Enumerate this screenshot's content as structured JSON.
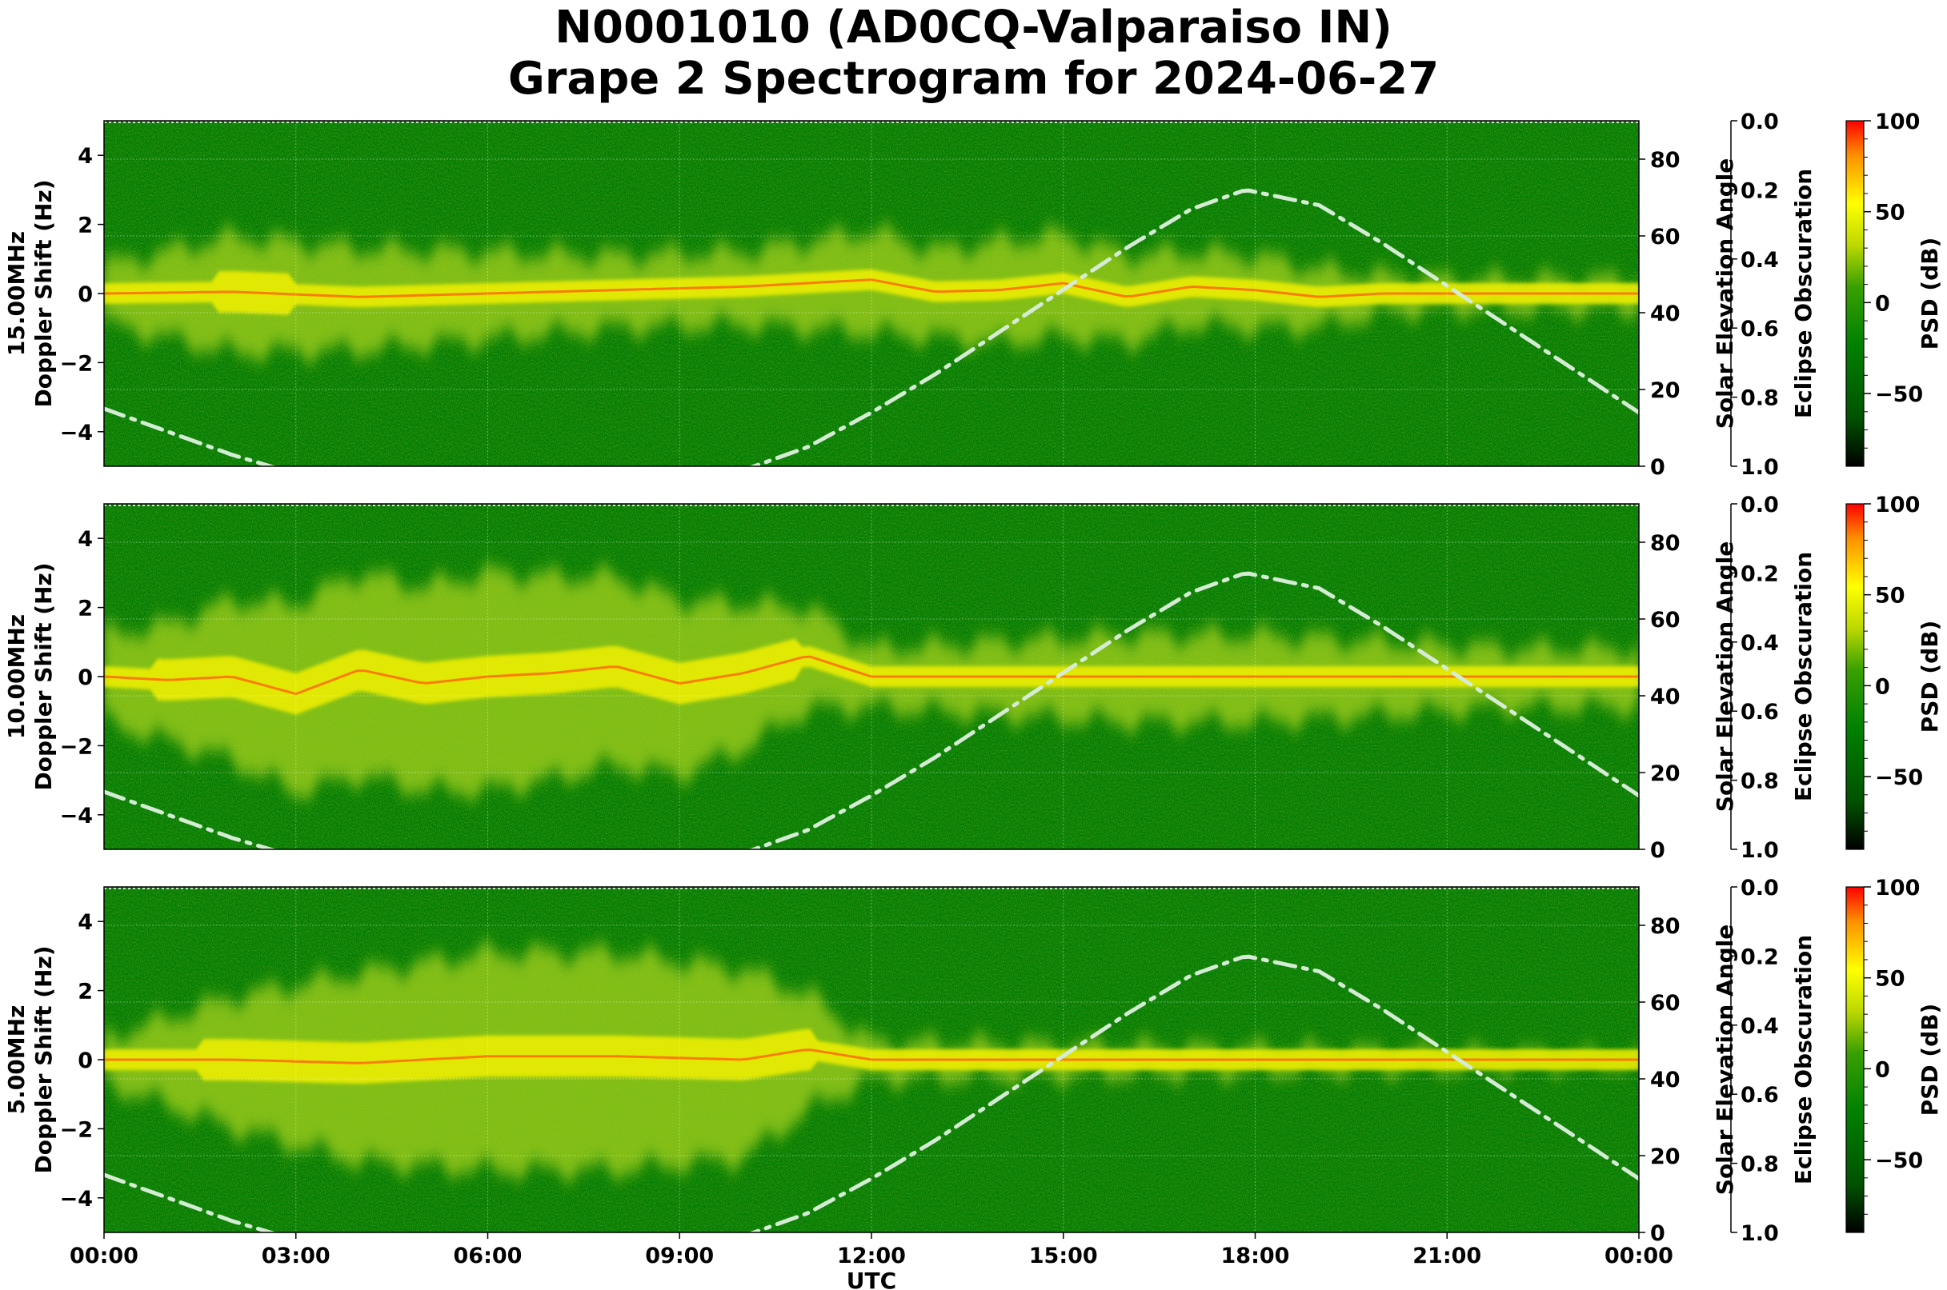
{
  "title": "N0001010 (AD0CQ-Valparaiso IN)",
  "subtitle": "Grape 2 Spectrogram for 2024-06-27",
  "chart_data": {
    "type": "heatmap",
    "xlabel": "UTC",
    "x_ticks": [
      "00:00",
      "03:00",
      "06:00",
      "09:00",
      "12:00",
      "15:00",
      "18:00",
      "21:00",
      "00:00"
    ],
    "x_range_hours": [
      0,
      24
    ],
    "y_ticks": [
      "4",
      "2",
      "0",
      "−2",
      "−4"
    ],
    "y_range": [
      -5,
      5
    ],
    "right_axis_label": "Solar Elevation Angle",
    "right_axis_ticks": [
      "80",
      "60",
      "40",
      "20",
      "0"
    ],
    "right_axis_range": [
      0,
      90
    ],
    "eclipse_axis_label": "Eclipse Obscuration",
    "eclipse_ticks": [
      "0.0",
      "0.2",
      "0.4",
      "0.6",
      "0.8",
      "1.0"
    ],
    "colorbar_label": "PSD (dB)",
    "colorbar_ticks": [
      "100",
      "50",
      "0",
      "−50"
    ],
    "colorbar_range": [
      -90,
      100
    ],
    "colormap": [
      "#000000",
      "#006e00",
      "#008000",
      "#7ec81e",
      "#ffff00",
      "#ff8000",
      "#ff0000"
    ],
    "solar_elevation_curve": {
      "color": "#d4ecd4",
      "style": "dash-dot",
      "hours": [
        0,
        1,
        2,
        3,
        4,
        5,
        6,
        7,
        8,
        9,
        10,
        11,
        12,
        13,
        14,
        15,
        16,
        17,
        17.85,
        19,
        20,
        21,
        22,
        23,
        24
      ],
      "degrees": [
        15,
        9,
        3,
        -2,
        -6,
        -9,
        -11,
        -11,
        -9,
        -6,
        -1,
        5,
        14,
        24,
        35,
        46,
        57,
        67,
        72,
        68,
        58,
        47,
        36,
        25,
        14
      ]
    },
    "panels": [
      {
        "name": "15MHz",
        "ylabel_line1": "15.00MHz",
        "ylabel_line2": "Doppler Shift (Hz)",
        "carrier_hours": [
          0,
          2,
          4,
          6,
          8,
          10,
          12,
          13,
          14,
          15,
          16,
          17,
          18,
          19,
          20,
          21,
          22,
          24
        ],
        "carrier_hz": [
          0,
          0.05,
          -0.1,
          0,
          0.1,
          0.2,
          0.4,
          0.05,
          0.1,
          0.3,
          -0.1,
          0.2,
          0.1,
          -0.1,
          0,
          0,
          0,
          0
        ],
        "spread_hz": [
          0.8,
          1.6,
          1.4,
          1.2,
          1.0,
          1.0,
          1.4,
          1.2,
          1.4,
          1.4,
          1.2,
          1.0,
          1.0,
          0.8,
          0.5,
          0.4,
          0.4,
          0.4
        ]
      },
      {
        "name": "10MHz",
        "ylabel_line1": "10.00MHz",
        "ylabel_line2": "Doppler Shift (Hz)",
        "carrier_hours": [
          0,
          1,
          2,
          3,
          4,
          5,
          6,
          7,
          8,
          9,
          10,
          11,
          12,
          14,
          16,
          18,
          20,
          22,
          24
        ],
        "carrier_hz": [
          0,
          -0.1,
          0,
          -0.5,
          0.2,
          -0.2,
          0,
          0.1,
          0.3,
          -0.2,
          0.1,
          0.6,
          0,
          0,
          0,
          0,
          0,
          0,
          0
        ],
        "spread_hz": [
          1.2,
          1.6,
          2.2,
          2.6,
          2.8,
          2.8,
          3.0,
          2.8,
          2.6,
          2.4,
          2.0,
          1.4,
          0.8,
          1.0,
          1.2,
          1.2,
          1.0,
          0.8,
          0.8
        ]
      },
      {
        "name": "5MHz",
        "ylabel_line1": "5.00MHz",
        "ylabel_line2": "Doppler Shift (Hz)",
        "carrier_hours": [
          0,
          2,
          4,
          6,
          8,
          10,
          11,
          12,
          24
        ],
        "carrier_hz": [
          0,
          0,
          -0.1,
          0.1,
          0.1,
          0,
          0.3,
          0,
          0
        ],
        "spread_hz": [
          0.6,
          1.8,
          2.6,
          3.0,
          3.0,
          2.6,
          1.6,
          0.5,
          0.1
        ]
      }
    ]
  }
}
